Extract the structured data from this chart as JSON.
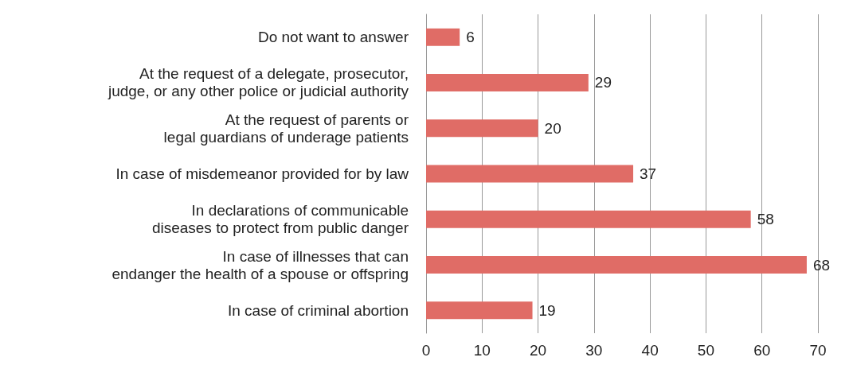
{
  "chart_data": {
    "type": "bar",
    "orientation": "horizontal",
    "categories": [
      "Do not want to answer",
      "At the request of a delegate, prosecutor,\njudge, or any other police or judicial authority",
      "At the request of parents or\nlegal guardians of underage patients",
      "In case of misdemeanor provided for by law",
      "In declarations of communicable\ndiseases to protect from public danger",
      "In case of illnesses that can\nendanger the health of a spouse or offspring",
      "In case of criminal abortion"
    ],
    "values": [
      6,
      29,
      20,
      37,
      58,
      68,
      19
    ],
    "color": "#e06c66",
    "xlim": [
      0,
      70
    ],
    "xticks": [
      0,
      10,
      20,
      30,
      40,
      50,
      60,
      70
    ],
    "grid": "x",
    "data_labels": true
  }
}
